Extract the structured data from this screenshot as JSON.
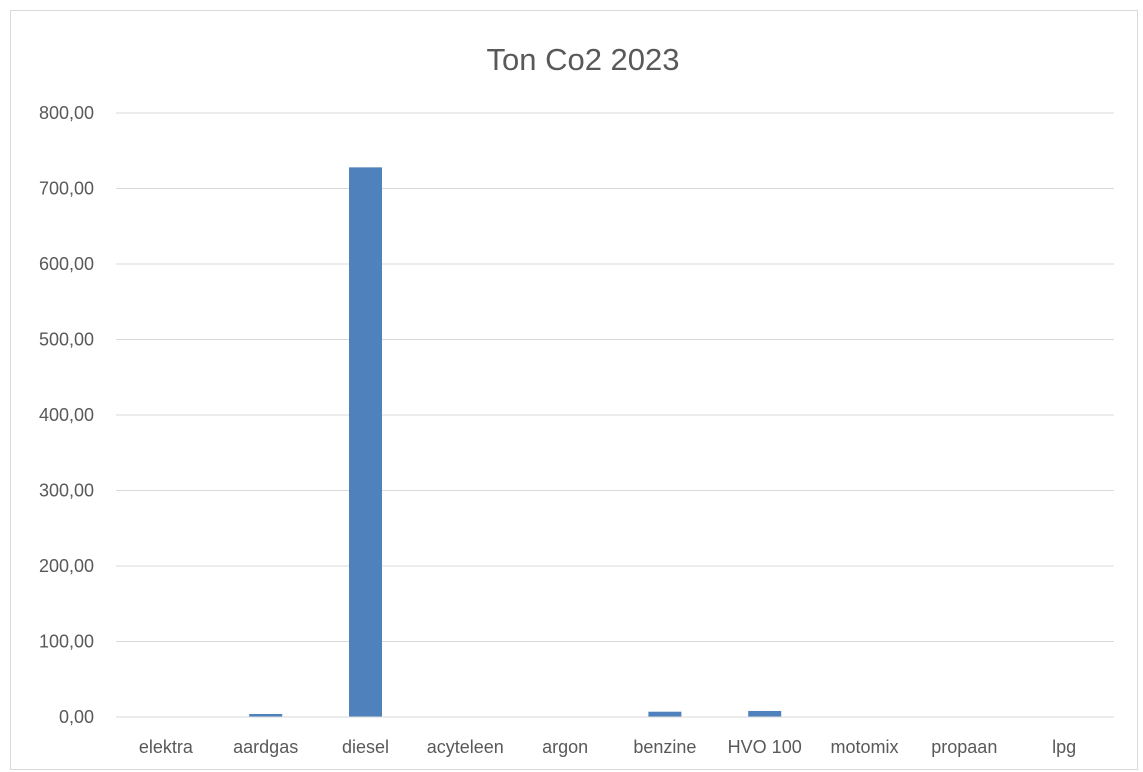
{
  "chart_data": {
    "type": "bar",
    "title": "Ton Co2 2023",
    "xlabel": "",
    "ylabel": "",
    "categories": [
      "elektra",
      "aardgas",
      "diesel",
      "acyteleen",
      "argon",
      "benzine",
      "HVO 100",
      "motomix",
      "propaan",
      "lpg"
    ],
    "values": [
      0.0,
      4.0,
      728.0,
      0.0,
      0.0,
      7.0,
      8.0,
      0.0,
      0.0,
      0.0
    ],
    "ylim": [
      0,
      800
    ],
    "yticks": [
      0,
      100,
      200,
      300,
      400,
      500,
      600,
      700,
      800
    ],
    "ytick_labels": [
      "0,00",
      "100,00",
      "200,00",
      "300,00",
      "400,00",
      "500,00",
      "600,00",
      "700,00",
      "800,00"
    ],
    "grid": true,
    "legend": "none",
    "bar_color": "#4f81bd",
    "gridline_color": "#d9d9d9",
    "text_color": "#595959"
  }
}
